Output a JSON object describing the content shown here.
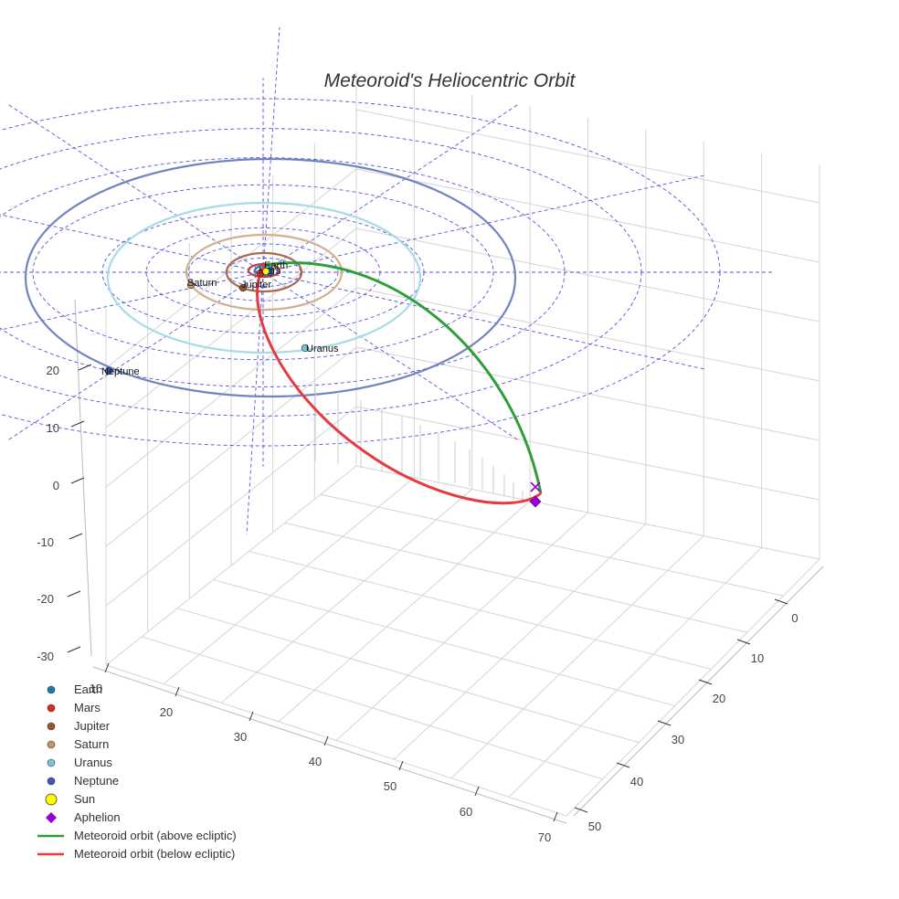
{
  "chart_data": {
    "type": "scatter3d",
    "title": "Meteoroid's Heliocentric Orbit",
    "axes": {
      "x": {
        "ticks": [
          10,
          20,
          30,
          40,
          50,
          60,
          70
        ]
      },
      "y": {
        "ticks": [
          0,
          10,
          20,
          30,
          40,
          50
        ]
      },
      "z": {
        "ticks": [
          20,
          10,
          0,
          -10,
          -20,
          -30
        ]
      }
    },
    "planets": [
      {
        "name": "Earth",
        "color": "#1f77b4"
      },
      {
        "name": "Mars",
        "color": "#d62f1f"
      },
      {
        "name": "Jupiter",
        "color": "#a0522d"
      },
      {
        "name": "Saturn",
        "color": "#c2956b"
      },
      {
        "name": "Uranus",
        "color": "#7fc4d6"
      },
      {
        "name": "Neptune",
        "color": "#3f58b0"
      }
    ],
    "orbit_colors": {
      "Earth": "#3a78b5",
      "Mars": "#b6453a",
      "Jupiter": "#a86a4e",
      "Saturn": "#d1b090",
      "Uranus": "#a9dbe6",
      "Neptune": "#7085c0"
    },
    "markers": {
      "sun": {
        "name": "Sun",
        "color": "#ffff00"
      },
      "aphelion": {
        "name": "Aphelion",
        "color": "#9400d3"
      }
    },
    "meteoroid": {
      "above": {
        "name": "Meteoroid orbit (above ecliptic)",
        "color": "#2e9e36"
      },
      "below": {
        "name": "Meteoroid orbit (below ecliptic)",
        "color": "#e8393f"
      }
    },
    "legend": [
      {
        "label": "Earth",
        "kind": "dot",
        "color": "#1f77b4"
      },
      {
        "label": "Mars",
        "kind": "dot",
        "color": "#d62f1f"
      },
      {
        "label": "Jupiter",
        "kind": "dot",
        "color": "#a0522d"
      },
      {
        "label": "Saturn",
        "kind": "dot",
        "color": "#c2956b"
      },
      {
        "label": "Uranus",
        "kind": "dot",
        "color": "#7fc4d6"
      },
      {
        "label": "Neptune",
        "kind": "dot",
        "color": "#3f58b0"
      },
      {
        "label": "Sun",
        "kind": "sun",
        "color": "#ffff00"
      },
      {
        "label": "Aphelion",
        "kind": "diamond",
        "color": "#9400d3"
      },
      {
        "label": "Meteoroid orbit (above ecliptic)",
        "kind": "line",
        "color": "#2e9e36"
      },
      {
        "label": "Meteoroid orbit (below ecliptic)",
        "kind": "line",
        "color": "#e8393f"
      }
    ],
    "colors": {
      "ecliptic_grid": "#5555dd",
      "box_grid": "#d4d4d4"
    }
  }
}
